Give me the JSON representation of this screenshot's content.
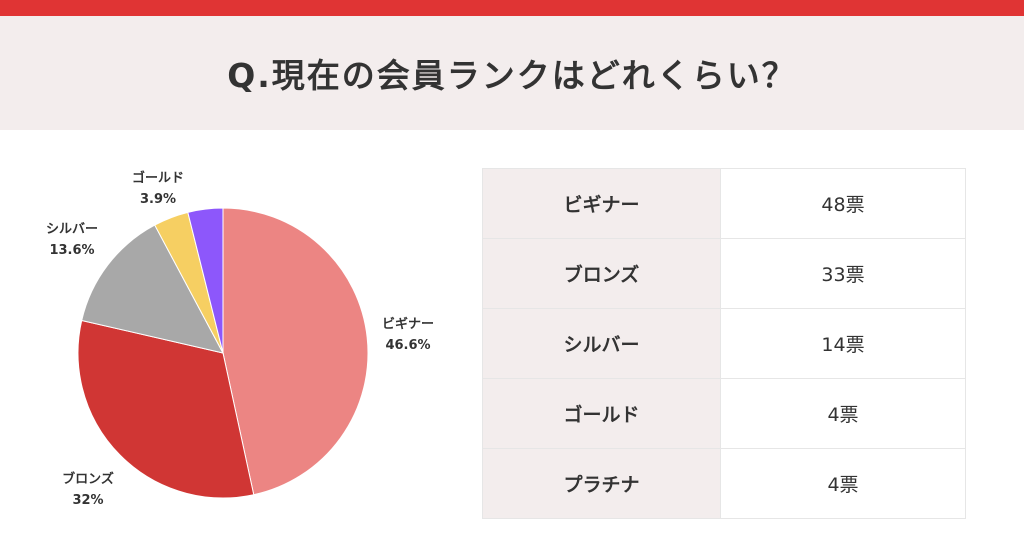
{
  "title": "Q.現在の会員ランクはどれくらい？",
  "colors": {
    "top_bar": "#e03434",
    "header_bg": "#f3eded"
  },
  "chart_data": {
    "type": "pie",
    "title": "",
    "start": "top",
    "direction": "clockwise",
    "slices": [
      {
        "label": "ビギナー",
        "value": 46.6,
        "pct_label": "46.6%",
        "color": "#ec8583",
        "show_label": true
      },
      {
        "label": "ブロンズ",
        "value": 32,
        "pct_label": "32%",
        "color": "#d03634",
        "show_label": true
      },
      {
        "label": "シルバー",
        "value": 13.6,
        "pct_label": "13.6%",
        "color": "#a8a8a8",
        "show_label": true
      },
      {
        "label": "ゴールド",
        "value": 3.9,
        "pct_label": "3.9%",
        "color": "#f6cf62",
        "show_label": true
      },
      {
        "label": "プラチナ",
        "value": 3.9,
        "pct_label": "",
        "color": "#8d57fb",
        "show_label": false
      }
    ]
  },
  "table": {
    "rows": [
      {
        "rank": "ビギナー",
        "votes": "48票"
      },
      {
        "rank": "ブロンズ",
        "votes": "33票"
      },
      {
        "rank": "シルバー",
        "votes": "14票"
      },
      {
        "rank": "ゴールド",
        "votes": "4票"
      },
      {
        "rank": "プラチナ",
        "votes": "4票"
      }
    ]
  }
}
